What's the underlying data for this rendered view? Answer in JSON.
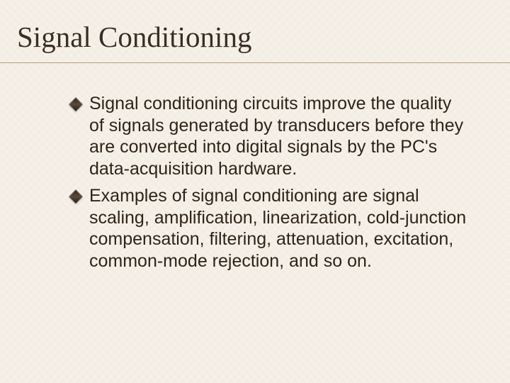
{
  "slide": {
    "title": "Signal Conditioning",
    "bullets": [
      {
        "text": "Signal conditioning circuits improve the quality of signals generated by transducers before they are converted into digital signals by the PC's data-acquisition hardware."
      },
      {
        "text": "Examples of signal conditioning are signal scaling, amplification, linearization, cold-junction compensation, filtering, attenuation, excitation, common-mode rejection, and so on."
      }
    ],
    "colors": {
      "background": "#f5f0e8",
      "title_text": "#3a2e22",
      "body_text": "#2e2418",
      "divider": "#b0a088",
      "bullet_dark": "#2a1f15"
    },
    "typography": {
      "title_font": "Times New Roman",
      "title_fontsize": 41,
      "body_font": "Arial",
      "body_fontsize": 25
    }
  }
}
